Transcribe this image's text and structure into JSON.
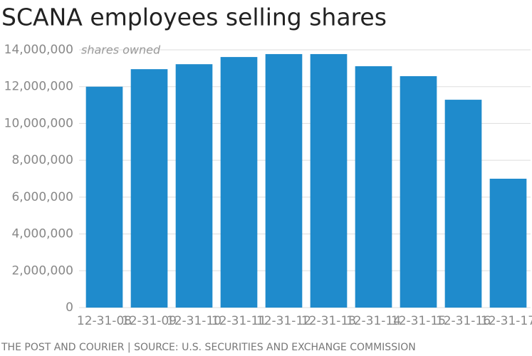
{
  "chart_data": {
    "type": "bar",
    "title": "SCANA employees selling shares",
    "annotation": "shares owned",
    "source": "THE POST AND COURIER | SOURCE: U.S. SECURITIES AND EXCHANGE COMMISSION",
    "categories": [
      "12-31-08",
      "12-31-09",
      "12-31-10",
      "12-31-11",
      "12-31-12",
      "12-31-13",
      "12-31-14",
      "12-31-15",
      "12-31-16",
      "12-31-17"
    ],
    "values": [
      12000000,
      12950000,
      13220000,
      13610000,
      13770000,
      13770000,
      13110000,
      12570000,
      11290000,
      7000000
    ],
    "color": "#1f8bcc",
    "ylim": [
      0,
      14000000
    ],
    "yticks": [
      0,
      {
        "value": 2000000,
        "label": "2,000,000"
      },
      {
        "value": 4000000,
        "label": "4,000,000"
      },
      {
        "value": 6000000,
        "label": "6,000,000"
      },
      {
        "value": 8000000,
        "label": "8,000,000"
      },
      {
        "value": 10000000,
        "label": "10,000,000"
      },
      {
        "value": 12000000,
        "label": "12,000,000"
      },
      {
        "value": 14000000,
        "label": "14,000,000"
      }
    ],
    "grid": true
  }
}
